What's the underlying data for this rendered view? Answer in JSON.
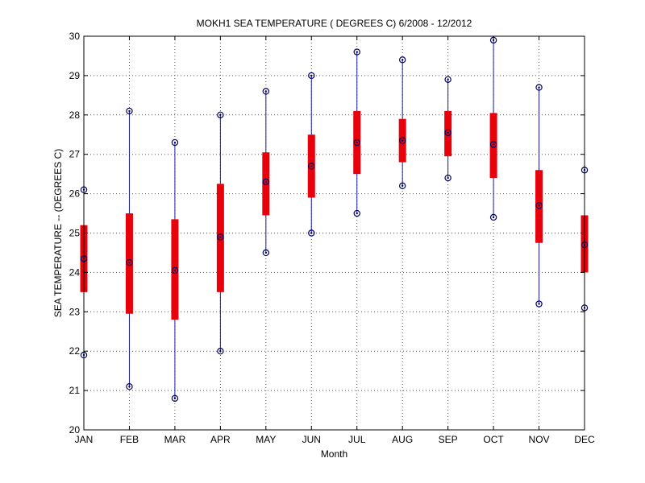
{
  "chart_data": {
    "type": "box",
    "title": "MOKH1  SEA TEMPERATURE ( DEGREES C) 6/2008 - 12/2012",
    "xlabel": "Month",
    "ylabel": "SEA TEMPERATURE -- (DEGREES C)",
    "ylim": [
      20,
      30
    ],
    "yticks": [
      "20",
      "21",
      "22",
      "23",
      "24",
      "25",
      "26",
      "27",
      "28",
      "29",
      "30"
    ],
    "grid": true,
    "categories": [
      "JAN",
      "FEB",
      "MAR",
      "APR",
      "MAY",
      "JUN",
      "JUL",
      "AUG",
      "SEP",
      "OCT",
      "NOV",
      "DEC"
    ],
    "series": [
      {
        "min": [
          21.9,
          21.1,
          20.8,
          22.0,
          24.5,
          25.0,
          25.5,
          26.2,
          26.4,
          25.4,
          23.2,
          23.1
        ],
        "q1": [
          23.5,
          22.95,
          22.8,
          23.5,
          25.45,
          25.9,
          26.5,
          26.8,
          26.95,
          26.4,
          24.75,
          24.0
        ],
        "median": [
          24.35,
          24.25,
          24.05,
          24.9,
          26.3,
          26.7,
          27.3,
          27.35,
          27.55,
          27.25,
          25.7,
          24.7
        ],
        "q3": [
          25.2,
          25.5,
          25.35,
          26.25,
          27.05,
          27.5,
          28.1,
          27.9,
          28.1,
          28.05,
          26.6,
          25.45
        ],
        "max": [
          26.1,
          28.1,
          27.3,
          28.0,
          28.6,
          29.0,
          29.6,
          29.4,
          28.9,
          29.9,
          28.7,
          26.6
        ]
      }
    ],
    "colors": {
      "box": "#e8000b",
      "whisker": "#1a1aa8",
      "marker": "#000060",
      "grid": "#555555",
      "axis": "#000000"
    }
  }
}
